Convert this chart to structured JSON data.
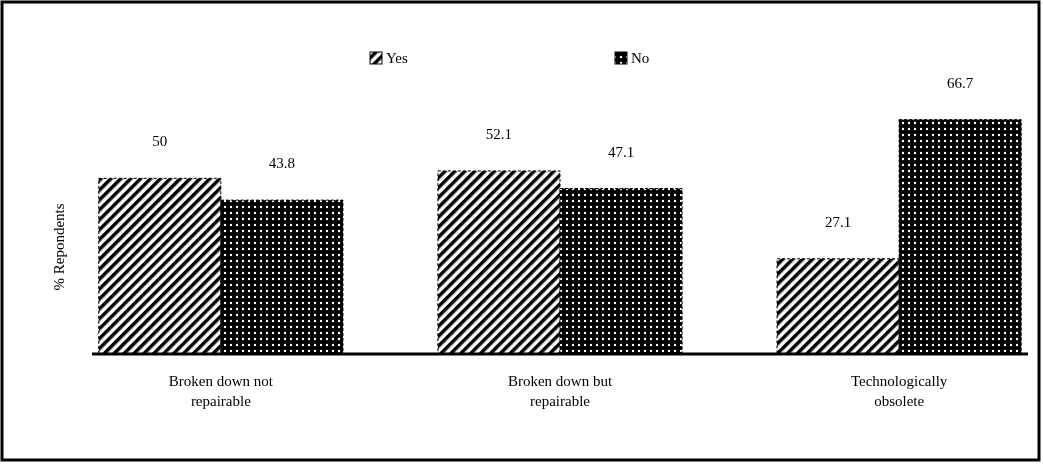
{
  "chart_data": {
    "type": "bar",
    "ylabel": "% Repondents",
    "categories": [
      "Broken down not repairable",
      "Broken down but repairable",
      "Technologically obsolete"
    ],
    "series": [
      {
        "name": "Yes",
        "color": "#000000",
        "values": [
          50,
          52.1,
          27.1
        ]
      },
      {
        "name": "No",
        "color": "#000000",
        "values": [
          43.8,
          47.1,
          66.7
        ]
      }
    ],
    "data_labels": true,
    "legend": "top",
    "grid": false
  }
}
